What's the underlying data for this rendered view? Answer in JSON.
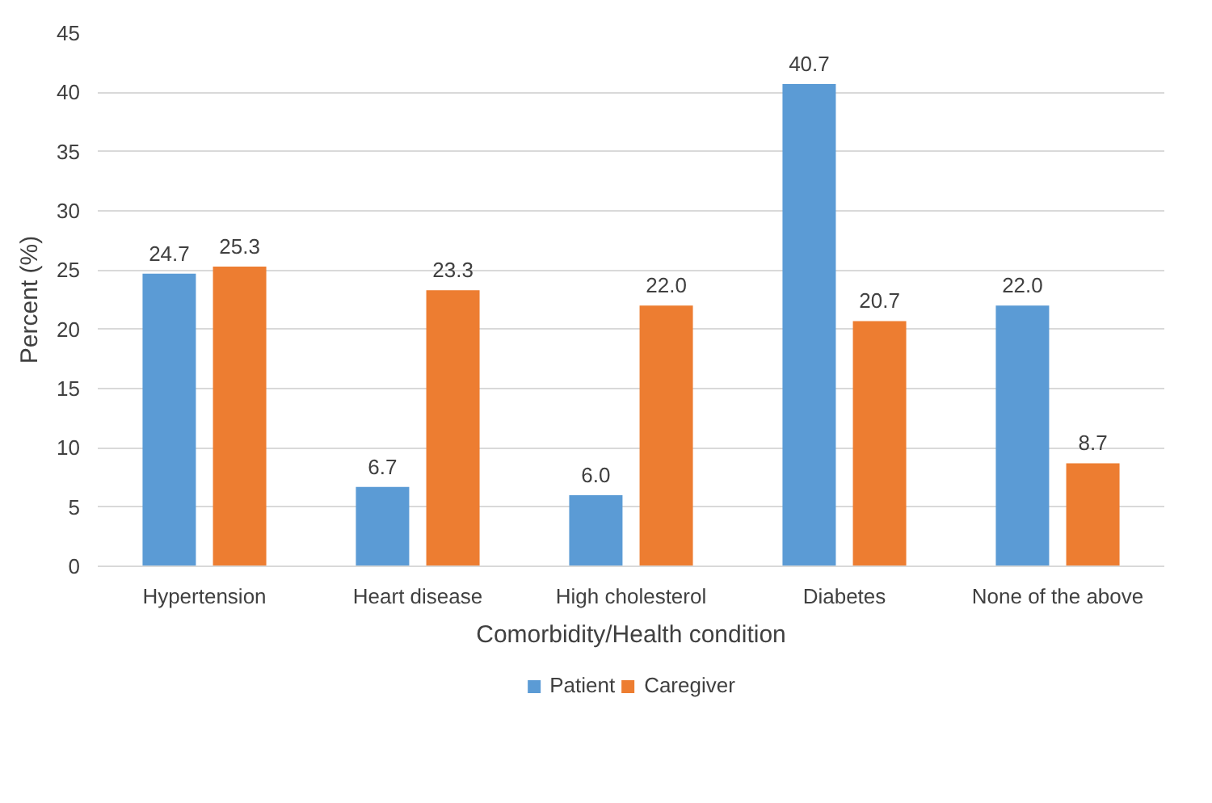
{
  "chart_data": {
    "type": "bar",
    "xlabel": "Comorbidity/Health condition",
    "ylabel": "Percent (%)",
    "categories": [
      "Hypertension",
      "Heart disease",
      "High cholesterol",
      "Diabetes",
      "None of the above"
    ],
    "series": [
      {
        "name": "Patient",
        "color": "#5b9bd5",
        "values": [
          24.7,
          6.7,
          6.0,
          40.7,
          22.0
        ],
        "value_labels": [
          "24.7",
          "6.7",
          "6.0",
          "40.7",
          "22.0"
        ]
      },
      {
        "name": "Caregiver",
        "color": "#ed7d31",
        "values": [
          25.3,
          23.3,
          22.0,
          20.7,
          8.7
        ],
        "value_labels": [
          "25.3",
          "23.3",
          "22.0",
          "20.7",
          "8.7"
        ]
      }
    ],
    "ylim": [
      0,
      45
    ],
    "yticks": [
      0,
      5,
      10,
      15,
      20,
      25,
      30,
      35,
      40,
      45
    ],
    "grid": "y",
    "legend": "bottom"
  }
}
